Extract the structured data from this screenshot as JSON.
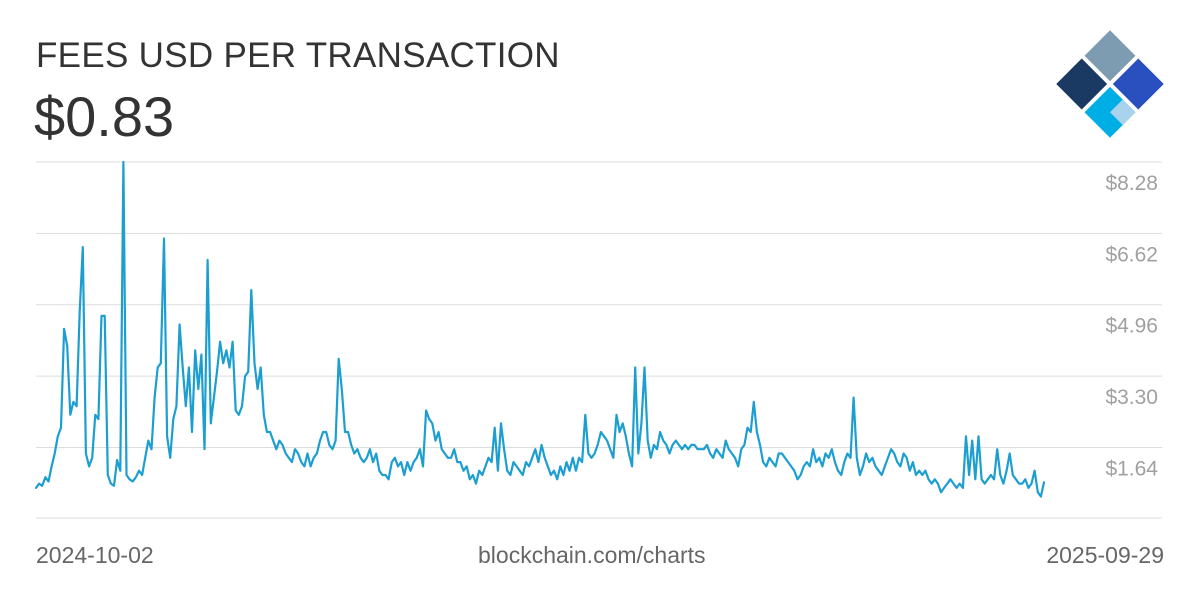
{
  "header": {
    "title": "FEES USD PER TRANSACTION",
    "current_value": "$0.83"
  },
  "footer": {
    "start_date": "2024-10-02",
    "source": "blockchain.com/charts",
    "end_date": "2025-09-29"
  },
  "logo": {
    "icon": "blockchain-diamond-logo",
    "colors": [
      "#7d9bb1",
      "#1a3a63",
      "#2a4fbf",
      "#00aee6",
      "#a9d3ed"
    ]
  },
  "chart_data": {
    "type": "line",
    "title": "FEES USD PER TRANSACTION",
    "x_start": "2024-10-02",
    "x_end": "2025-09-29",
    "y_ticks": [
      {
        "value": 1.64,
        "label": "$1.64"
      },
      {
        "value": 3.3,
        "label": "$3.30"
      },
      {
        "value": 4.96,
        "label": "$4.96"
      },
      {
        "value": 6.62,
        "label": "$6.62"
      },
      {
        "value": 8.28,
        "label": "$8.28"
      }
    ],
    "ylim": [
      0,
      8.28
    ],
    "grid": true,
    "line_color": "#1c9fd0",
    "values": [
      0.7,
      0.8,
      0.75,
      0.95,
      0.85,
      1.2,
      1.5,
      1.9,
      2.1,
      4.4,
      4.0,
      2.4,
      2.7,
      2.6,
      4.8,
      6.3,
      1.5,
      1.2,
      1.4,
      2.4,
      2.3,
      4.7,
      4.7,
      1.0,
      0.8,
      0.75,
      1.35,
      1.1,
      8.28,
      1.0,
      0.9,
      0.85,
      0.95,
      1.1,
      1.0,
      1.4,
      1.8,
      1.6,
      2.8,
      3.5,
      3.6,
      6.5,
      1.9,
      1.4,
      2.3,
      2.6,
      4.5,
      3.5,
      2.6,
      3.5,
      2.0,
      3.9,
      3.0,
      3.8,
      1.6,
      6.0,
      2.2,
      2.8,
      3.4,
      4.1,
      3.6,
      3.9,
      3.5,
      4.1,
      2.5,
      2.4,
      2.6,
      3.3,
      3.4,
      5.3,
      3.6,
      3.0,
      3.5,
      2.4,
      2.0,
      2.0,
      1.8,
      1.6,
      1.8,
      1.7,
      1.5,
      1.4,
      1.3,
      1.6,
      1.5,
      1.3,
      1.2,
      1.5,
      1.2,
      1.4,
      1.5,
      1.8,
      2.0,
      2.0,
      1.7,
      1.6,
      1.8,
      3.7,
      3.0,
      2.0,
      2.0,
      1.7,
      1.5,
      1.6,
      1.4,
      1.3,
      1.4,
      1.6,
      1.3,
      1.5,
      1.1,
      1.0,
      1.0,
      0.9,
      1.3,
      1.4,
      1.2,
      1.3,
      1.0,
      1.3,
      1.1,
      1.3,
      1.4,
      1.6,
      1.2,
      2.5,
      2.3,
      2.2,
      1.8,
      2.0,
      1.6,
      1.5,
      1.4,
      1.4,
      1.6,
      1.3,
      1.3,
      1.1,
      1.2,
      0.9,
      1.0,
      0.8,
      1.1,
      1.0,
      1.2,
      1.4,
      1.3,
      2.1,
      1.1,
      2.2,
      1.6,
      1.1,
      1.0,
      1.3,
      1.2,
      1.1,
      1.0,
      1.3,
      1.2,
      1.4,
      1.6,
      1.3,
      1.7,
      1.4,
      1.2,
      1.0,
      1.1,
      0.9,
      1.2,
      1.0,
      1.3,
      1.1,
      1.4,
      1.1,
      1.4,
      1.3,
      2.4,
      1.5,
      1.4,
      1.5,
      1.7,
      2.0,
      1.9,
      1.8,
      1.6,
      1.4,
      2.4,
      2.0,
      2.2,
      1.9,
      1.5,
      1.2,
      3.5,
      1.5,
      2.2,
      3.5,
      1.8,
      1.4,
      1.7,
      1.6,
      2.0,
      1.8,
      1.7,
      1.5,
      1.7,
      1.8,
      1.7,
      1.6,
      1.7,
      1.6,
      1.7,
      1.7,
      1.6,
      1.6,
      1.6,
      1.7,
      1.5,
      1.4,
      1.6,
      1.5,
      1.4,
      1.8,
      1.6,
      1.5,
      1.4,
      1.2,
      1.6,
      1.7,
      2.1,
      2.0,
      2.7,
      2.0,
      1.7,
      1.3,
      1.2,
      1.4,
      1.3,
      1.2,
      1.5,
      1.5,
      1.4,
      1.3,
      1.2,
      1.1,
      0.9,
      1.0,
      1.2,
      1.3,
      1.2,
      1.6,
      1.3,
      1.4,
      1.2,
      1.5,
      1.4,
      1.6,
      1.3,
      1.1,
      1.0,
      1.3,
      1.5,
      1.4,
      2.8,
      1.4,
      1.0,
      1.2,
      1.5,
      1.3,
      1.4,
      1.2,
      1.1,
      1.0,
      1.2,
      1.4,
      1.6,
      1.5,
      1.3,
      1.2,
      1.5,
      1.4,
      1.1,
      1.3,
      1.0,
      1.1,
      1.0,
      1.1,
      0.9,
      0.8,
      0.9,
      0.8,
      0.6,
      0.7,
      0.8,
      0.9,
      0.8,
      0.7,
      0.8,
      0.7,
      1.9,
      1.0,
      1.8,
      0.9,
      1.9,
      0.9,
      0.8,
      0.9,
      1.0,
      0.9,
      1.6,
      1.0,
      0.8,
      1.1,
      1.5,
      1.0,
      0.9,
      0.8,
      0.8,
      0.9,
      0.7,
      0.8,
      1.1,
      0.6,
      0.5,
      0.83
    ]
  }
}
